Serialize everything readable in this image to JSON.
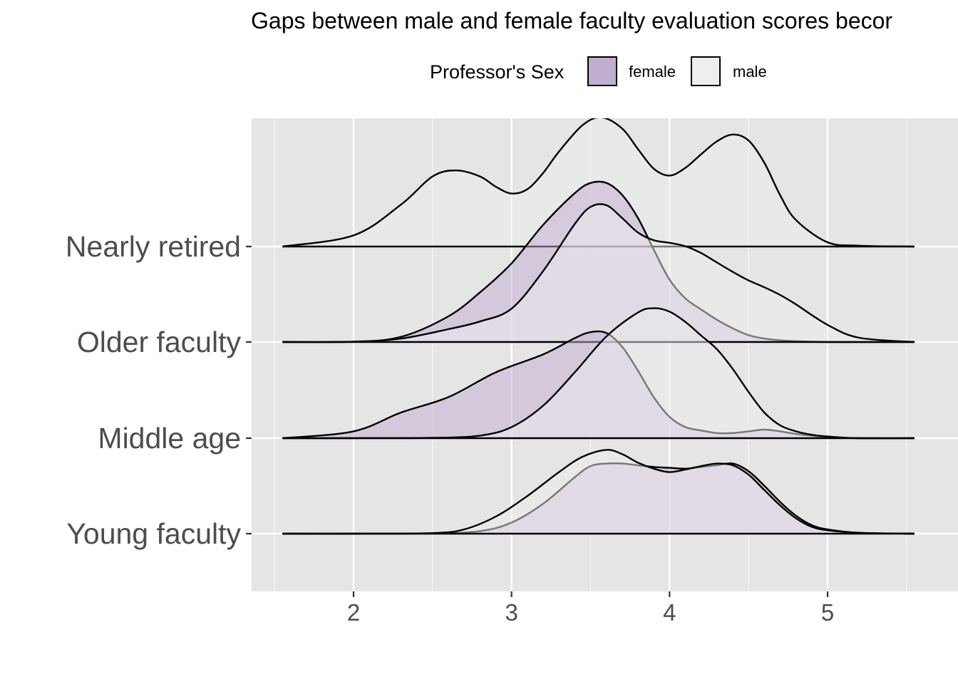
{
  "chart_data": {
    "type": "area",
    "subtype": "ridgeline-density",
    "title": "Gaps between male and female faculty evaluation scores becor",
    "xlabel": "",
    "ylabel": "",
    "xlim": [
      1.35,
      5.6
    ],
    "x_ticks": [
      2,
      3,
      4,
      5
    ],
    "x_tick_labels": [
      "2",
      "3",
      "4",
      "5"
    ],
    "categories": [
      "Young faculty",
      "Middle age",
      "Older faculty",
      "Nearly retired"
    ],
    "grid": true,
    "legend": {
      "title": "Professor's Sex",
      "position": "top",
      "entries": [
        {
          "label": "female",
          "color": "#c2aed0"
        },
        {
          "label": "male",
          "color": "#eeeeee"
        }
      ]
    },
    "colors": {
      "female": "#c2aed0",
      "male": "#eeeeee",
      "panel": "#e5e5e5",
      "gridline": "#ffffff"
    },
    "series": [
      {
        "group": "Young faculty",
        "sex": "female",
        "x": [
          1.55,
          2.0,
          2.5,
          2.8,
          3.0,
          3.2,
          3.4,
          3.5,
          3.6,
          3.7,
          3.8,
          3.9,
          4.0,
          4.1,
          4.2,
          4.3,
          4.4,
          4.5,
          4.6,
          4.7,
          4.8,
          4.9,
          5.0,
          5.2,
          5.55
        ],
        "density": [
          0,
          0,
          0.003,
          0.03,
          0.13,
          0.35,
          0.66,
          0.79,
          0.82,
          0.82,
          0.8,
          0.78,
          0.77,
          0.76,
          0.78,
          0.8,
          0.82,
          0.73,
          0.56,
          0.37,
          0.21,
          0.1,
          0.05,
          0.01,
          0
        ]
      },
      {
        "group": "Young faculty",
        "sex": "male",
        "x": [
          1.55,
          2.0,
          2.5,
          2.7,
          2.9,
          3.1,
          3.3,
          3.45,
          3.6,
          3.7,
          3.8,
          3.9,
          4.0,
          4.1,
          4.2,
          4.3,
          4.4,
          4.5,
          4.6,
          4.7,
          4.8,
          4.9,
          5.0,
          5.2,
          5.55
        ],
        "density": [
          0,
          0,
          0.007,
          0.05,
          0.2,
          0.44,
          0.72,
          0.9,
          0.98,
          0.93,
          0.83,
          0.76,
          0.72,
          0.75,
          0.79,
          0.82,
          0.8,
          0.69,
          0.51,
          0.33,
          0.18,
          0.08,
          0.04,
          0.01,
          0
        ]
      },
      {
        "group": "Middle age",
        "sex": "female",
        "x": [
          1.55,
          2.0,
          2.3,
          2.6,
          2.9,
          3.2,
          3.4,
          3.5,
          3.6,
          3.7,
          3.8,
          3.9,
          4.0,
          4.1,
          4.2,
          4.3,
          4.4,
          4.5,
          4.6,
          4.7,
          4.8,
          4.9,
          5.0,
          5.2,
          5.55
        ],
        "density": [
          0,
          0.08,
          0.3,
          0.48,
          0.77,
          0.98,
          1.17,
          1.24,
          1.23,
          1.07,
          0.79,
          0.48,
          0.25,
          0.13,
          0.09,
          0.06,
          0.06,
          0.08,
          0.1,
          0.08,
          0.05,
          0.03,
          0.01,
          0,
          0
        ]
      },
      {
        "group": "Middle age",
        "sex": "male",
        "x": [
          1.55,
          2.0,
          2.5,
          2.8,
          3.0,
          3.2,
          3.4,
          3.6,
          3.8,
          3.9,
          4.0,
          4.1,
          4.2,
          4.3,
          4.4,
          4.5,
          4.6,
          4.7,
          4.8,
          4.9,
          5.0,
          5.2,
          5.55
        ],
        "density": [
          0,
          0,
          0.004,
          0.03,
          0.13,
          0.38,
          0.77,
          1.19,
          1.47,
          1.52,
          1.48,
          1.36,
          1.2,
          1.04,
          0.81,
          0.54,
          0.3,
          0.15,
          0.08,
          0.04,
          0.02,
          0,
          0
        ]
      },
      {
        "group": "Older faculty",
        "sex": "female",
        "x": [
          1.55,
          2.0,
          2.3,
          2.6,
          2.8,
          3.0,
          3.2,
          3.4,
          3.5,
          3.6,
          3.7,
          3.8,
          3.9,
          4.0,
          4.1,
          4.2,
          4.3,
          4.4,
          4.5,
          4.6,
          4.7,
          4.8,
          5.0,
          5.2,
          5.55
        ],
        "density": [
          0,
          0.003,
          0.06,
          0.3,
          0.58,
          0.92,
          1.37,
          1.74,
          1.86,
          1.86,
          1.72,
          1.45,
          1.08,
          0.73,
          0.51,
          0.38,
          0.26,
          0.16,
          0.08,
          0.04,
          0.02,
          0.01,
          0,
          0,
          0
        ]
      },
      {
        "group": "Older faculty",
        "sex": "male",
        "x": [
          1.55,
          2.0,
          2.3,
          2.6,
          2.8,
          3.0,
          3.2,
          3.4,
          3.5,
          3.6,
          3.7,
          3.8,
          3.9,
          4.0,
          4.1,
          4.2,
          4.3,
          4.4,
          4.5,
          4.6,
          4.7,
          4.8,
          5.0,
          5.2,
          5.55
        ],
        "density": [
          0,
          0.003,
          0.04,
          0.15,
          0.24,
          0.39,
          0.83,
          1.38,
          1.58,
          1.6,
          1.45,
          1.28,
          1.19,
          1.16,
          1.12,
          1.04,
          0.93,
          0.82,
          0.72,
          0.64,
          0.55,
          0.44,
          0.2,
          0.05,
          0
        ]
      },
      {
        "group": "Nearly retired",
        "sex": "male",
        "x": [
          1.55,
          2.0,
          2.3,
          2.5,
          2.65,
          2.8,
          2.9,
          3.0,
          3.1,
          3.2,
          3.3,
          3.45,
          3.57,
          3.7,
          3.8,
          3.9,
          4.0,
          4.1,
          4.2,
          4.3,
          4.4,
          4.5,
          4.6,
          4.7,
          4.8,
          5.0,
          5.2,
          5.55
        ],
        "density": [
          0,
          0.13,
          0.49,
          0.82,
          0.89,
          0.82,
          0.7,
          0.62,
          0.67,
          0.86,
          1.11,
          1.42,
          1.51,
          1.38,
          1.14,
          0.91,
          0.83,
          0.92,
          1.08,
          1.23,
          1.31,
          1.24,
          0.98,
          0.6,
          0.31,
          0.05,
          0.01,
          0
        ]
      }
    ]
  }
}
